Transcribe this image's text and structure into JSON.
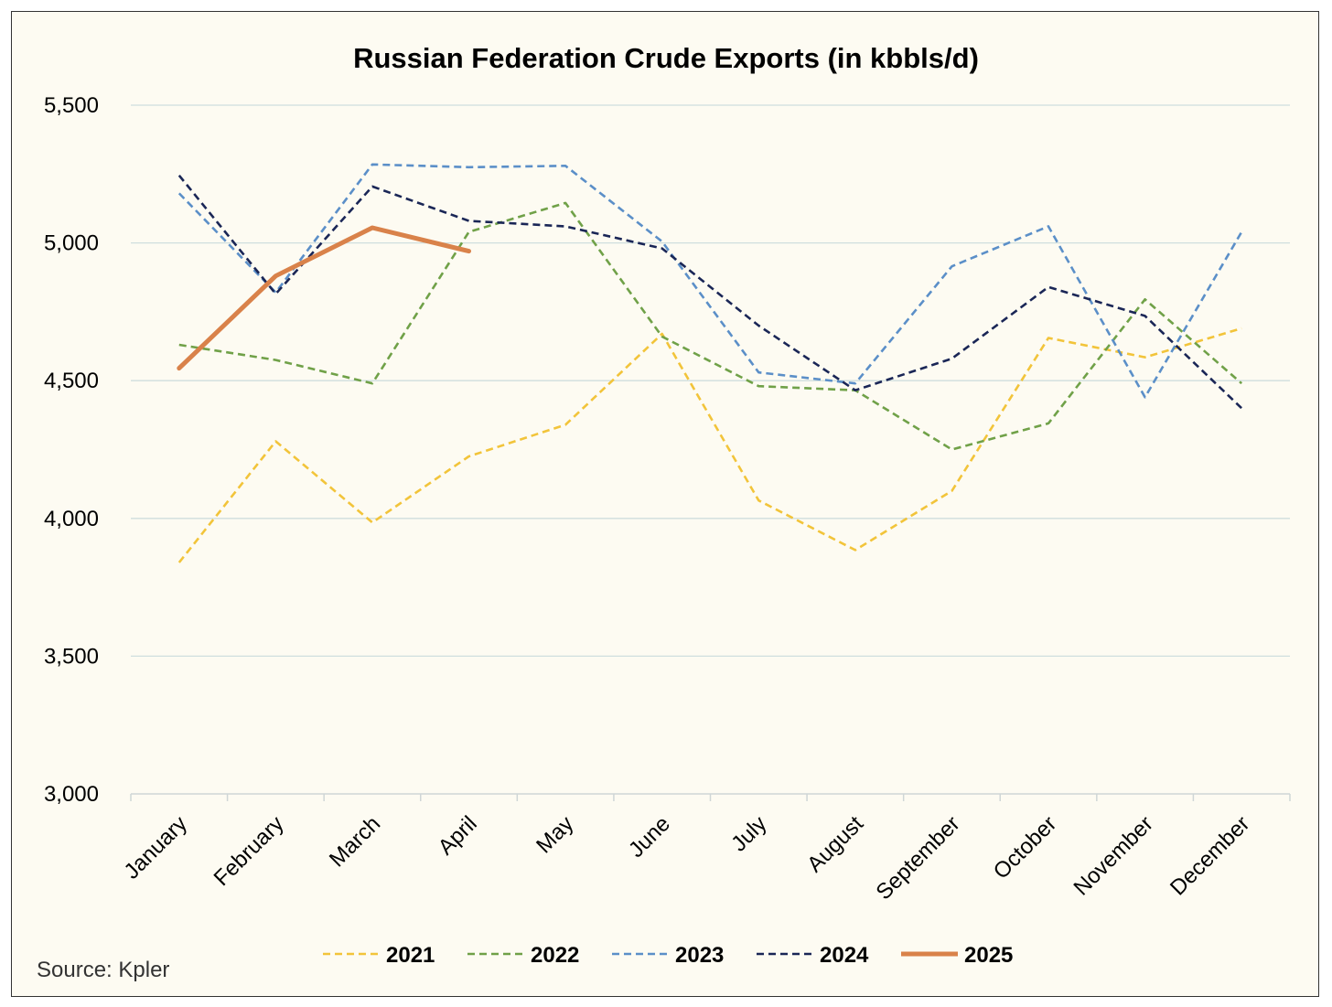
{
  "chart_data": {
    "type": "line",
    "title": "Russian Federation Crude Exports (in kbbls/d)",
    "xlabel": "",
    "ylabel": "",
    "ylim": [
      3000,
      5500
    ],
    "y_ticks": [
      "3,000",
      "3,500",
      "4,000",
      "4,500",
      "5,000",
      "5,500"
    ],
    "y_tick_values": [
      3000,
      3500,
      4000,
      4500,
      5000,
      5500
    ],
    "categories": [
      "January",
      "February",
      "March",
      "April",
      "May",
      "June",
      "July",
      "August",
      "September",
      "October",
      "November",
      "December"
    ],
    "grid": true,
    "legend_position": "bottom",
    "series": [
      {
        "name": "2021",
        "color": "#f2c43a",
        "dashed": true,
        "values": [
          3840,
          4280,
          3985,
          4225,
          4340,
          4670,
          4065,
          3885,
          4100,
          4655,
          4585,
          4690
        ]
      },
      {
        "name": "2022",
        "color": "#70a148",
        "dashed": true,
        "values": [
          4630,
          4575,
          4490,
          5040,
          5145,
          4660,
          4480,
          4465,
          4250,
          4345,
          4795,
          4490
        ]
      },
      {
        "name": "2023",
        "color": "#5b8fc8",
        "dashed": true,
        "values": [
          5180,
          4820,
          5285,
          5275,
          5280,
          5005,
          4530,
          4490,
          4915,
          5060,
          4440,
          5040
        ]
      },
      {
        "name": "2024",
        "color": "#1a2656",
        "dashed": true,
        "values": [
          5245,
          4815,
          5205,
          5080,
          5060,
          4980,
          4700,
          4465,
          4580,
          4840,
          4735,
          4400
        ]
      },
      {
        "name": "2025",
        "color": "#d9824a",
        "dashed": false,
        "values": [
          4545,
          4880,
          5055,
          4970,
          null,
          null,
          null,
          null,
          null,
          null,
          null,
          null
        ]
      }
    ]
  },
  "footer": {
    "source": "Source: Kpler"
  }
}
